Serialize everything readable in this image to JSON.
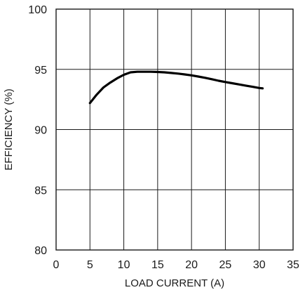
{
  "chart_data": {
    "type": "line",
    "title": "",
    "xlabel": "LOAD CURRENT (A)",
    "ylabel": "EFFICIENCY (%)",
    "xlim": [
      0,
      35
    ],
    "ylim": [
      80,
      100
    ],
    "xticks": [
      0,
      5,
      10,
      15,
      20,
      25,
      30,
      35
    ],
    "yticks": [
      80,
      85,
      90,
      95,
      100
    ],
    "grid": true,
    "legend": "none",
    "series": [
      {
        "color": "#000000",
        "x": [
          5,
          6,
          7,
          8,
          9,
          10,
          11,
          12,
          13,
          14,
          15,
          16,
          17,
          18,
          19,
          20,
          21,
          22,
          23,
          24,
          25,
          26,
          27,
          28,
          29,
          30,
          30.5
        ],
        "y": [
          92.2,
          92.9,
          93.5,
          93.9,
          94.25,
          94.55,
          94.75,
          94.8,
          94.8,
          94.8,
          94.78,
          94.75,
          94.7,
          94.65,
          94.58,
          94.5,
          94.4,
          94.3,
          94.18,
          94.05,
          93.95,
          93.85,
          93.75,
          93.65,
          93.55,
          93.45,
          93.42
        ]
      }
    ]
  }
}
